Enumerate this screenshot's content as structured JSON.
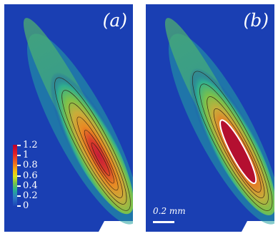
{
  "panels": [
    {
      "label": "(a)"
    },
    {
      "label": "(b)"
    }
  ],
  "colorbar": {
    "ticks": [
      "1.2",
      "1",
      "0.8",
      "0.6",
      "0.4",
      "0.2",
      "0"
    ]
  },
  "scale_bar": {
    "value": "0.2",
    "unit": "mm"
  },
  "colors": {
    "background": "#1a3fb3",
    "high": "#c0102b",
    "mid": "#f2c118",
    "low": "#31a8a0"
  }
}
